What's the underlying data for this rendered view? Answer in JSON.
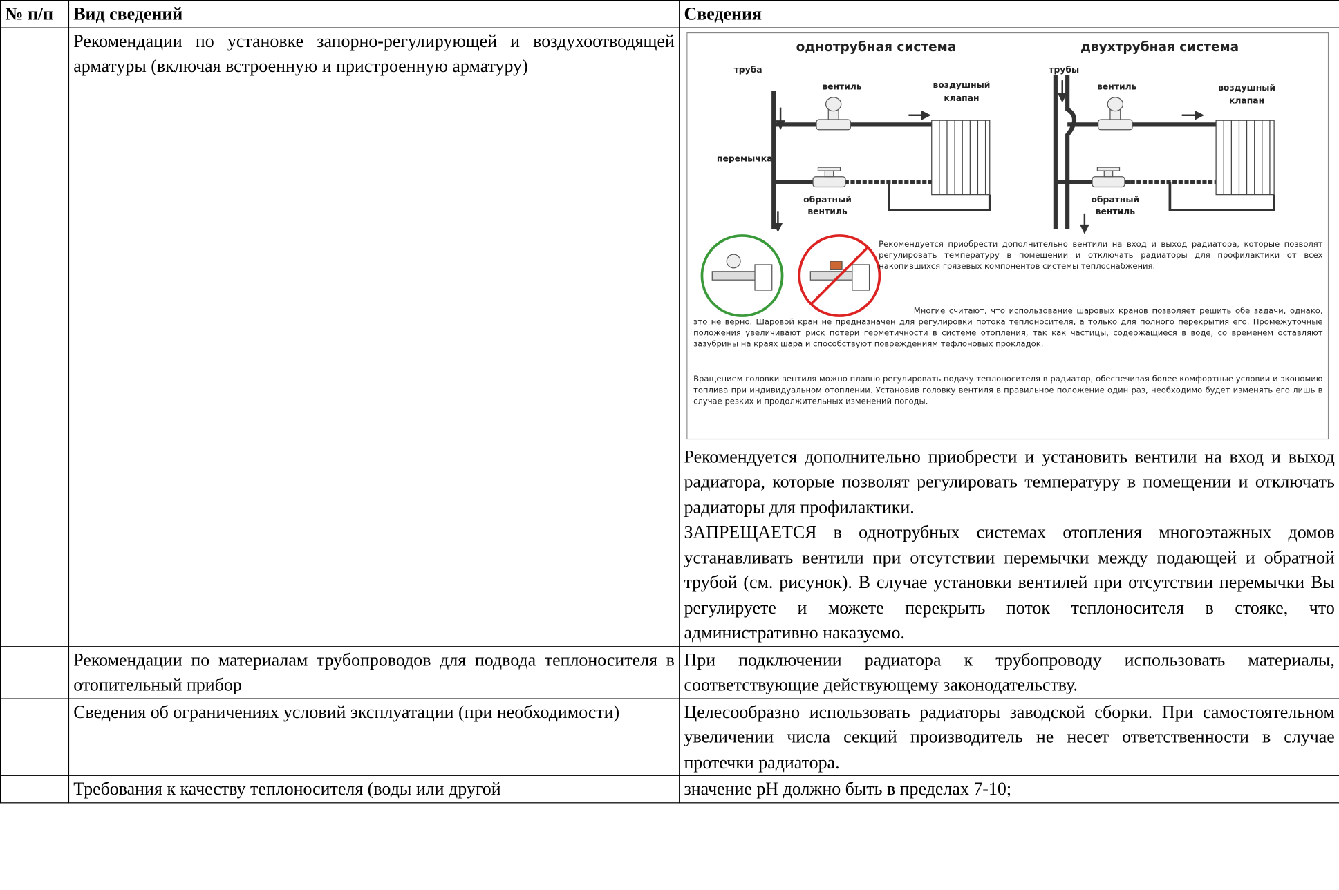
{
  "table": {
    "header": [
      "№ п/п",
      "Вид сведений",
      "Сведения"
    ],
    "rows": [
      {
        "item": "Рекомендации по установке запорно-регулирующей и воздухоотводящей арматуры (включая встроенную и пристроенную арматуру)",
        "figure": {
          "one_pipe": {
            "title": "однотрубная система",
            "labels": [
              "труба",
              "вентиль",
              "воздушный",
              "клапан",
              "перемычка",
              "обратный",
              "вентиль"
            ]
          },
          "two_pipe": {
            "title": "двухтрубная система",
            "labels": [
              "трубы",
              "вентиль",
              "воздушный",
              "клапан",
              "обратный",
              "вентиль"
            ]
          },
          "notes": [
            "Рекомендуется приобрести дополнительно вентили на вход и выход радиатора, которые позволят регулировать температуру в помещении и отключать радиаторы для профилактики от всех накопившихся грязевых компонентов системы теплоснабжения.",
            "Многие считают, что использование шаровых кранов позволяет решить обе задачи, однако, это не верно. Шаровой кран не предназначен для регулировки потока теплоносителя, а только для полного перекрытия его. Промежуточные положения увеличивают риск потери герметичности в системе отопления, так как частицы, содержащиеся в воде, со временем оставляют зазубрины на краях шара и способствуют повреждениям тефлоновых прокладок.",
            "Вращением головки вентиля можно плавно регулировать подачу теплоносителя в радиатор, обеспечивая более комфортные условии и экономию топлива при индивидуальном отоплении. Установив головку вентиля в правильное положение один раз, необходимо будет изменять его лишь в случае резких и продолжительных изменений погоды."
          ]
        },
        "details": [
          "Рекомендуется дополнительно приобрести и установить вентили на вход и выход радиатора, которые позволят регулировать температуру в помещении и отключать радиаторы для профилактики.",
          "ЗАПРЕЩАЕТСЯ в однотрубных системах отопления многоэтажных домов устанавливать вентили при отсутствии перемычки между подающей и обратной трубой (см. рисунок). В случае установки вентилей при отсутствии перемычки Вы регулируете и можете перекрыть поток теплоносителя в стояке, что административно наказуемо."
        ]
      },
      {
        "item": "Рекомендации по материалам трубопроводов для подвода теплоносителя в отопительный прибор",
        "details": [
          "При подключении радиатора к трубопроводу использовать материалы, соответствующие действующему законодательству."
        ]
      },
      {
        "item": "Сведения об ограничениях условий эксплуатации (при необходимости)",
        "details": [
          "Целесообразно использовать радиаторы заводской сборки. При самостоятельном увеличении числа секций производитель не несет ответственности в случае протечки радиатора."
        ]
      },
      {
        "item": "Требования к качеству теплоносителя (воды или другой",
        "details": [
          "значение pH должно быть в пределах 7-10;"
        ]
      }
    ]
  }
}
